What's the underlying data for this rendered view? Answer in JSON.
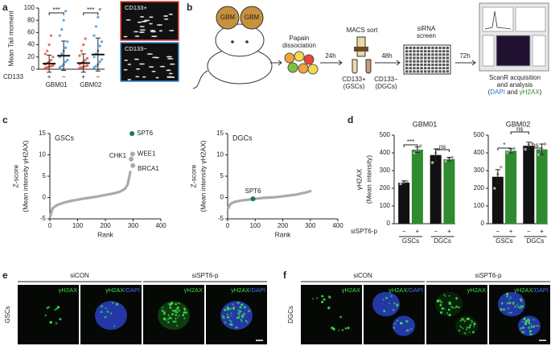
{
  "panel_labels": [
    "a",
    "b",
    "c",
    "d",
    "e",
    "f"
  ],
  "panel_a_images": [
    {
      "label": "CD133+"
    },
    {
      "label": "CD133−"
    }
  ],
  "workflow": {
    "mouse_labels": [
      "GBM",
      "GBM"
    ],
    "dissociation": [
      "Papain",
      "dissociation"
    ],
    "times": [
      "24h",
      "48h",
      "72h"
    ],
    "sort": "MACS sort",
    "fractions": [
      [
        "CD133+",
        "(GSCs)"
      ],
      [
        "CD133−",
        "(DGCs)"
      ]
    ],
    "screen": [
      "siRNA",
      "screen"
    ],
    "analysis": [
      "ScanR acquisition",
      "and analysis"
    ],
    "readout": [
      "(",
      "DAPI",
      " and ",
      "γH2AX",
      ")"
    ]
  },
  "chart_data": [
    {
      "type": "strip",
      "ylabel": "Mean Tail moment",
      "ylim": [
        0,
        100
      ],
      "yticks": [
        0,
        20,
        40,
        60,
        80,
        100
      ],
      "categories": [
        "GBM01",
        "GBM02"
      ],
      "group_label": "CD133",
      "series": [
        {
          "name": "+",
          "color": "#e8443a",
          "values": [
            9,
            10
          ],
          "errors": [
            14,
            15
          ],
          "points": [
            [
              2,
              3,
              4,
              5,
              6,
              8,
              10,
              12,
              15,
              20,
              25,
              30,
              40,
              55
            ],
            [
              2,
              3,
              4,
              5,
              6,
              8,
              10,
              12,
              15,
              18,
              22,
              30,
              40,
              50
            ]
          ]
        },
        {
          "name": "−",
          "color": "#3a8fd9",
          "values": [
            22,
            24
          ],
          "errors": [
            24,
            27
          ],
          "points": [
            [
              3,
              5,
              8,
              12,
              15,
              20,
              25,
              30,
              35,
              45,
              55,
              65,
              80,
              95
            ],
            [
              3,
              5,
              8,
              12,
              16,
              20,
              25,
              30,
              38,
              45,
              55,
              70,
              85,
              98
            ]
          ]
        }
      ],
      "annotations": [
        "***",
        "***"
      ]
    },
    {
      "type": "scatter",
      "title": "GSCs",
      "xlabel": "Rank",
      "ylabel": [
        "Z-score",
        "(Mean intensity γH2AX)"
      ],
      "xlim": [
        0,
        400
      ],
      "xticks": [
        0,
        100,
        200,
        300,
        400
      ],
      "ylim": [
        -5,
        15
      ],
      "yticks": [
        -5,
        0,
        5,
        10,
        15
      ],
      "series": [
        {
          "color": "#aaaaaa",
          "x": [
            1,
            10,
            25,
            50,
            75,
            100,
            125,
            150,
            175,
            200,
            225,
            250,
            270,
            280,
            285,
            290
          ],
          "values": [
            -4.5,
            -2.5,
            -1.8,
            -1.2,
            -0.8,
            -0.5,
            -0.2,
            0,
            0.3,
            0.6,
            0.9,
            1.3,
            2,
            3,
            4.5,
            6
          ]
        }
      ],
      "highlights": [
        {
          "label": "SPT6",
          "x": 296,
          "value": 15,
          "color": "#1d7a45"
        },
        {
          "label": "WEE1",
          "x": 298,
          "value": 10.2,
          "color": "#aaaaaa"
        },
        {
          "label": "CHK1",
          "x": 293,
          "value": 9,
          "color": "#aaaaaa"
        },
        {
          "label": "BRCA1",
          "x": 299,
          "value": 7.5,
          "color": "#aaaaaa"
        }
      ]
    },
    {
      "type": "scatter",
      "title": "DGCs",
      "xlabel": "Rank",
      "ylabel": [
        "Z-score",
        "(Mean intensity γH2AX)"
      ],
      "xlim": [
        0,
        400
      ],
      "xticks": [
        0,
        100,
        200,
        300,
        400
      ],
      "ylim": [
        -5,
        15
      ],
      "yticks": [
        -5,
        0,
        5,
        10,
        15
      ],
      "series": [
        {
          "color": "#aaaaaa",
          "x": [
            1,
            10,
            25,
            50,
            75,
            100,
            125,
            150,
            175,
            200,
            225,
            250,
            270,
            285,
            300
          ],
          "values": [
            -2.6,
            -1.5,
            -1.0,
            -0.7,
            -0.5,
            -0.3,
            -0.1,
            0,
            0.1,
            0.3,
            0.5,
            0.7,
            1.0,
            1.2,
            1.5
          ]
        }
      ],
      "highlights": [
        {
          "label": "SPT6",
          "x": 92,
          "value": -0.3,
          "color": "#1d7a45"
        }
      ]
    },
    {
      "type": "bar",
      "title": "GBM01",
      "ylabel": [
        "γH2AX",
        "(Mean intensity)"
      ],
      "ylim": [
        0,
        500
      ],
      "yticks": [
        0,
        100,
        200,
        300,
        400,
        500
      ],
      "categories": [
        "GSCs",
        "DGCs"
      ],
      "group_label": "siSPT6-p",
      "series": [
        {
          "name": "−",
          "color": "#111111",
          "values": [
            232,
            388
          ],
          "errors": [
            10,
            35
          ],
          "points": [
            [
              225,
              235,
              240
            ],
            [
              345,
              400,
              420
            ]
          ]
        },
        {
          "name": "+",
          "color": "#2e8b2e",
          "values": [
            418,
            365
          ],
          "errors": [
            15,
            10
          ],
          "points": [
            [
              400,
              415,
              440
            ],
            [
              355,
              365,
              375
            ]
          ]
        }
      ],
      "annotations": [
        "***",
        "ns"
      ]
    },
    {
      "type": "bar",
      "title": "GBM02",
      "ylim": [
        0,
        500
      ],
      "yticks": [
        0,
        100,
        200,
        300,
        400,
        500
      ],
      "categories": [
        "GSCs",
        "DGCs"
      ],
      "group_label": "siSPT6-p",
      "series": [
        {
          "name": "−",
          "color": "#111111",
          "values": [
            265,
            440
          ],
          "errors": [
            40,
            20
          ],
          "points": [
            [
              200,
              280,
              320
            ],
            [
              420,
              445,
              455
            ]
          ]
        },
        {
          "name": "+",
          "color": "#2e8b2e",
          "values": [
            412,
            420
          ],
          "errors": [
            12,
            30
          ],
          "points": [
            [
              400,
              410,
              425
            ],
            [
              390,
              420,
              450
            ]
          ]
        }
      ],
      "annotations": [
        "*",
        "ns",
        "ns"
      ]
    }
  ],
  "micrographs": [
    {
      "row_label": "GSCs",
      "conditions": [
        "siCON",
        "siSPT6-p"
      ],
      "channels": [
        [
          "γH2AX"
        ],
        [
          "γH2AX",
          "/DAPI"
        ],
        [
          "γH2AX"
        ],
        [
          "γH2AX",
          "/DAPI"
        ]
      ]
    },
    {
      "row_label": "DGCs",
      "conditions": [
        "siCON",
        "siSPT6-p"
      ],
      "channels": [
        [
          "γH2AX"
        ],
        [
          "γH2AX",
          "/DAPI"
        ],
        [
          "γH2AX"
        ],
        [
          "γH2AX",
          "/DAPI"
        ]
      ]
    }
  ]
}
